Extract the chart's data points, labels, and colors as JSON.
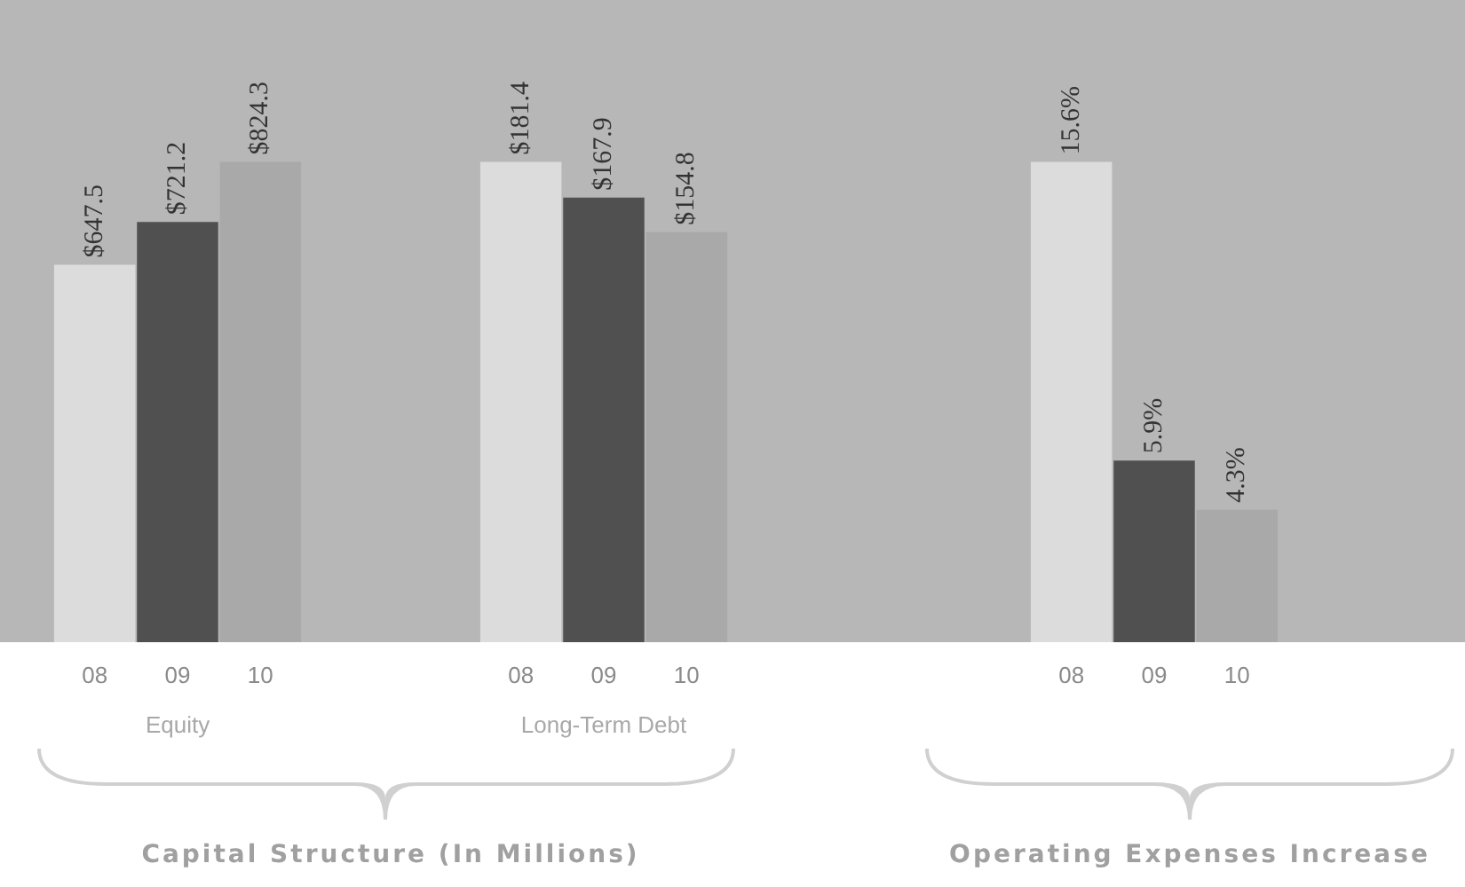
{
  "chart_data": [
    {
      "type": "bar",
      "title": "Capital Structure (In Millions)",
      "xlabel": "Equity",
      "categories": [
        "08",
        "09",
        "10"
      ],
      "values": [
        647.5,
        721.2,
        824.3
      ],
      "colors": [
        "#dcdcdc",
        "#505050",
        "#a9a9a9"
      ],
      "value_labels": [
        "$647.5",
        "$721.2",
        "$824.3"
      ]
    },
    {
      "type": "bar",
      "xlabel": "Long-Term Debt",
      "categories": [
        "08",
        "09",
        "10"
      ],
      "values": [
        181.4,
        167.9,
        154.8
      ],
      "colors": [
        "#dcdcdc",
        "#505050",
        "#a9a9a9"
      ],
      "value_labels": [
        "$181.4",
        "$167.9",
        "$154.8"
      ]
    },
    {
      "type": "bar",
      "title": "Operating Expenses Increase",
      "categories": [
        "08",
        "09",
        "10"
      ],
      "values": [
        15.6,
        5.9,
        4.3
      ],
      "colors": [
        "#dcdcdc",
        "#505050",
        "#a9a9a9"
      ],
      "value_labels": [
        "15.6%",
        "5.9%",
        "4.3%"
      ]
    }
  ]
}
